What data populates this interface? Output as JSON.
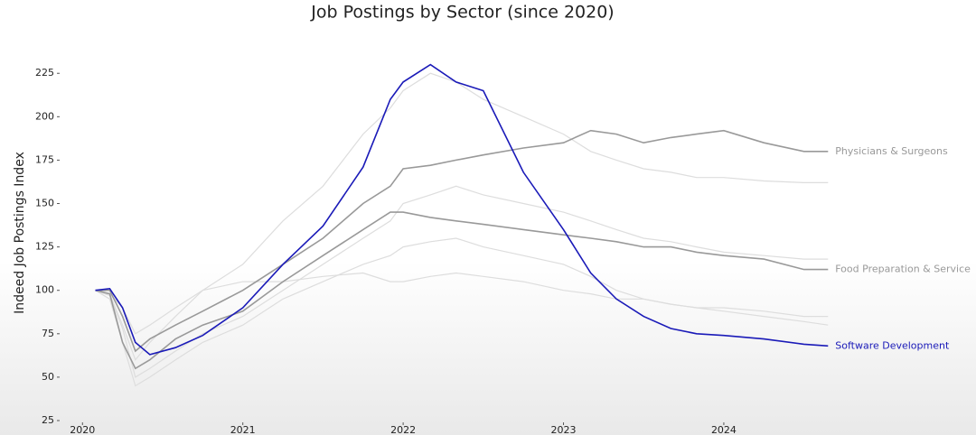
{
  "chart_data": {
    "type": "line",
    "title": "Job Postings by Sector (since 2020)",
    "y_label": "Indeed Job Postings Index",
    "x": [
      2020.08,
      2020.17,
      2020.25,
      2020.33,
      2020.42,
      2020.58,
      2020.75,
      2021.0,
      2021.25,
      2021.5,
      2021.75,
      2021.92,
      2022.0,
      2022.17,
      2022.33,
      2022.5,
      2022.75,
      2023.0,
      2023.17,
      2023.33,
      2023.5,
      2023.67,
      2023.83,
      2024.0,
      2024.25,
      2024.5,
      2024.65
    ],
    "series": [
      {
        "color": "#dddddd",
        "values": [
          100,
          98,
          80,
          60,
          70,
          85,
          100,
          115,
          140,
          160,
          190,
          205,
          215,
          225,
          220,
          210,
          200,
          190,
          180,
          175,
          170,
          168,
          165,
          165,
          163,
          162,
          162
        ]
      },
      {
        "color": "#dddddd",
        "values": [
          100,
          97,
          78,
          50,
          55,
          65,
          75,
          85,
          100,
          115,
          130,
          140,
          150,
          155,
          160,
          155,
          150,
          145,
          140,
          135,
          130,
          128,
          125,
          122,
          120,
          118,
          118
        ]
      },
      {
        "color": "#dddddd",
        "values": [
          100,
          95,
          70,
          45,
          50,
          60,
          70,
          80,
          95,
          105,
          115,
          120,
          125,
          128,
          130,
          125,
          120,
          115,
          108,
          100,
          95,
          92,
          90,
          88,
          85,
          82,
          80
        ]
      },
      {
        "color": "#dddddd",
        "values": [
          100,
          98,
          90,
          75,
          80,
          90,
          100,
          105,
          105,
          108,
          110,
          105,
          105,
          108,
          110,
          108,
          105,
          100,
          98,
          95,
          95,
          92,
          90,
          90,
          88,
          85,
          85
        ]
      },
      {
        "name": "Physicians & Surgeons",
        "color": "#999999",
        "values": [
          100,
          100,
          85,
          65,
          72,
          80,
          88,
          100,
          115,
          130,
          150,
          160,
          170,
          172,
          175,
          178,
          182,
          185,
          192,
          190,
          185,
          188,
          190,
          192,
          185,
          180,
          180
        ]
      },
      {
        "name": "Food Preparation & Service",
        "color": "#999999",
        "values": [
          100,
          98,
          70,
          55,
          60,
          72,
          80,
          88,
          105,
          120,
          135,
          145,
          145,
          142,
          140,
          138,
          135,
          132,
          130,
          128,
          125,
          125,
          122,
          120,
          118,
          112,
          112
        ]
      },
      {
        "name": "Software Development",
        "color": "#1a1ab8",
        "values": [
          100,
          101,
          90,
          70,
          63,
          67,
          74,
          90,
          115,
          137,
          171,
          210,
          220,
          230,
          220,
          215,
          168,
          135,
          110,
          95,
          85,
          78,
          75,
          74,
          72,
          69,
          68
        ]
      }
    ],
    "xlim": [
      2019.88,
      2024.75
    ],
    "xticks": [
      2020,
      2021,
      2022,
      2023,
      2024
    ],
    "ylim": [
      25,
      235
    ],
    "yticks": [
      25,
      50,
      75,
      100,
      125,
      150,
      175,
      200,
      225
    ]
  }
}
